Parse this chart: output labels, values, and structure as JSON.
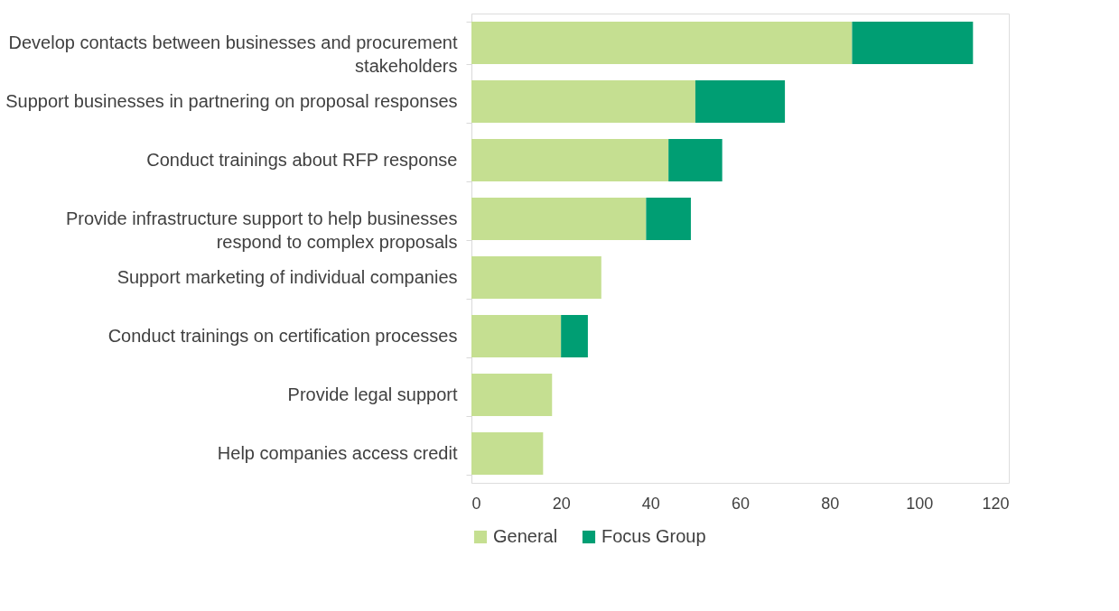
{
  "chart_data": {
    "type": "bar",
    "orientation": "horizontal",
    "stacked": true,
    "categories": [
      "Develop contacts between businesses and procurement stakeholders",
      "Support businesses in partnering on proposal responses",
      "Conduct trainings about RFP response",
      "Provide infrastructure support to help businesses respond to complex proposals",
      "Support marketing of individual companies",
      "Conduct trainings on certification processes",
      "Provide legal support",
      "Help companies access credit"
    ],
    "series": [
      {
        "name": "General",
        "color": "#c5df91",
        "values": [
          85,
          50,
          44,
          39,
          29,
          20,
          18,
          16
        ]
      },
      {
        "name": "Focus Group",
        "color": "#009e73",
        "values": [
          27,
          20,
          12,
          10,
          null,
          6,
          null,
          null
        ]
      }
    ],
    "xlim": [
      0,
      120
    ],
    "xticks": [
      0,
      20,
      40,
      60,
      80,
      100,
      120
    ],
    "grid": false,
    "legend": "bottom"
  }
}
